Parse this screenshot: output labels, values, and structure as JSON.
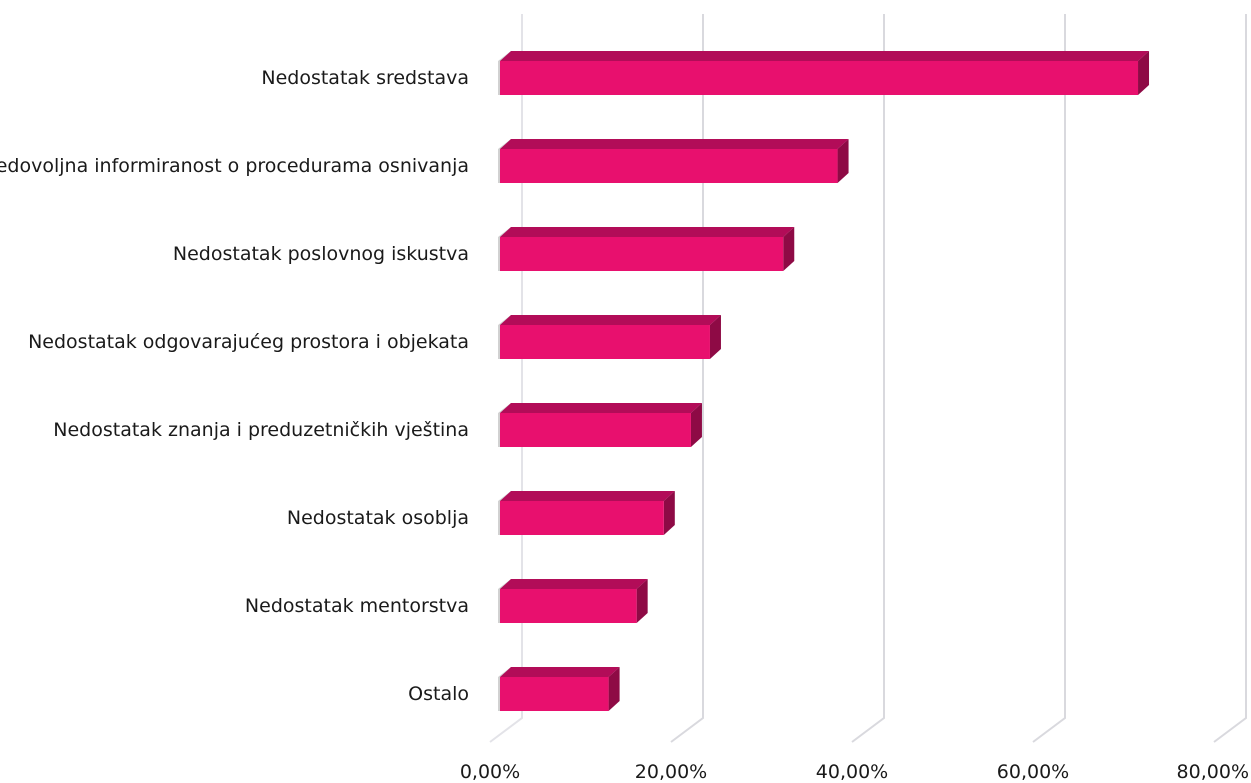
{
  "chart_data": {
    "type": "bar",
    "orientation": "horizontal",
    "categories": [
      "Nedostatak sredstava",
      "Nedovoljna informiranost o procedurama osnivanja",
      "Nedostatak poslovnog iskustva",
      "Nedostatak odgovarajućeg prostora i objekata",
      "Nedostatak znanja i preduzetničkih vještina",
      "Nedostatak osoblja",
      "Nedostatak mentorstva",
      "Ostalo"
    ],
    "values": [
      70.5,
      37.3,
      31.3,
      23.2,
      21.1,
      18.1,
      15.1,
      12.0
    ],
    "xlim": [
      0,
      80
    ],
    "xticks": [
      "0,00%",
      "20,00%",
      "40,00%",
      "60,00%",
      "80,00%"
    ],
    "tick_values": [
      0,
      20,
      40,
      60,
      80
    ],
    "title": "",
    "xlabel": "",
    "ylabel": "",
    "grid": true,
    "style": "3d",
    "colors": {
      "bar_front": "#e8106e",
      "bar_top": "#b20c58",
      "bar_side": "#8e0a45",
      "grid": "#d9d9de",
      "shadow": "#9a9a9a"
    }
  }
}
